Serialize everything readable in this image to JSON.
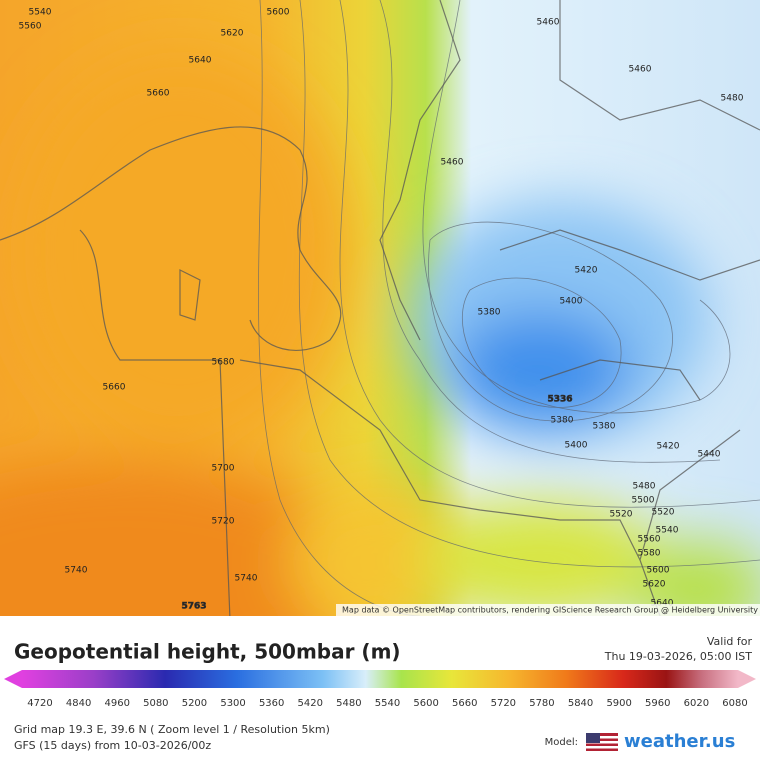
{
  "map": {
    "contour_labels": [
      "5540",
      "5560",
      "5600",
      "5620",
      "5640",
      "5660",
      "5460",
      "5460",
      "5480",
      "5460",
      "5420",
      "5400",
      "5380",
      "5336",
      "5380",
      "5380",
      "5400",
      "5420",
      "5440",
      "5480",
      "5500",
      "5520",
      "5520",
      "5540",
      "5560",
      "5580",
      "5600",
      "5620",
      "5640",
      "5680",
      "5660",
      "5700",
      "5720",
      "5740",
      "5740",
      "5763"
    ],
    "attribution": "Map data © OpenStreetMap contributors, rendering GIScience Research Group @ Heidelberg University"
  },
  "header": {
    "title": "Geopotential height, 500mbar (m)",
    "valid_label": "Valid for",
    "valid_time": "Thu 19-03-2026, 05:00 IST"
  },
  "legend": {
    "labels": [
      "4720",
      "4840",
      "4960",
      "5080",
      "5200",
      "5300",
      "5360",
      "5420",
      "5480",
      "5540",
      "5600",
      "5660",
      "5720",
      "5780",
      "5840",
      "5900",
      "5960",
      "6020",
      "6080"
    ]
  },
  "footer": {
    "grid_info": "Grid map 19.3 E, 39.6 N ( Zoom level 1 / Resolution 5km)",
    "model_run": "GFS (15 days) from  10-03-2026/00z",
    "model_label": "Model:",
    "brand": "weather.us"
  }
}
